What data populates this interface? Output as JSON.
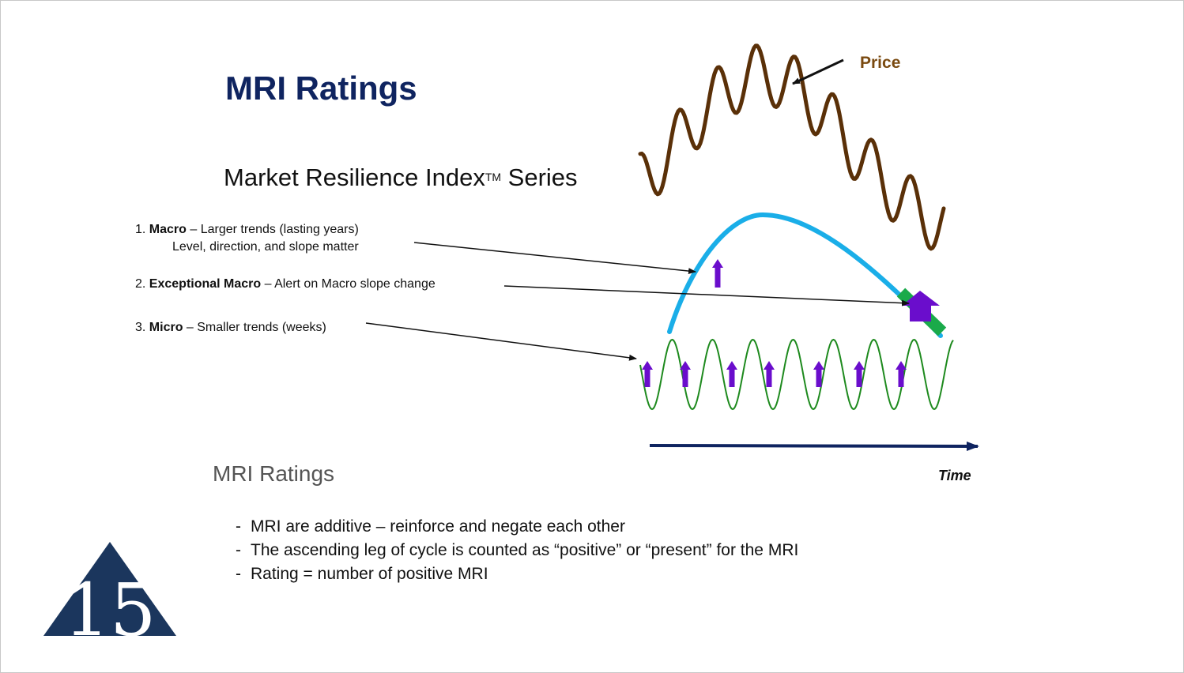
{
  "title": "MRI Ratings",
  "subtitle": {
    "main": "Market Resilience Index",
    "tm": "TM",
    "tail": " Series"
  },
  "items": [
    {
      "num": "1. ",
      "term": "Macro",
      "desc": " – Larger  trends (lasting years)",
      "desc2": "Level, direction, and slope matter"
    },
    {
      "num": "2. ",
      "term": "Exceptional Macro",
      "desc": " – Alert on Macro slope change"
    },
    {
      "num": "3. ",
      "term": "Micro",
      "desc": " – Smaller trends (weeks)"
    }
  ],
  "labels": {
    "price": "Price",
    "time": "Time"
  },
  "ratings": {
    "heading": "MRI Ratings",
    "bullets": [
      "MRI are additive – reinforce and negate each other",
      "The ascending leg of cycle is counted as “positive” or “present” for the MRI",
      "Rating = number of positive MRI"
    ]
  },
  "colors": {
    "title": "#0f2460",
    "price_curve": "#5a3008",
    "macro_curve": "#1aaee8",
    "micro_curve": "#1e8a1e",
    "up_arrow": "#6a0dcc",
    "exceptional_band": "#1aaa4a",
    "time_axis": "#0f2460",
    "logo": "#1b365d"
  },
  "logo": {
    "icon": "fifteen-triangle-logo",
    "text": "15"
  }
}
